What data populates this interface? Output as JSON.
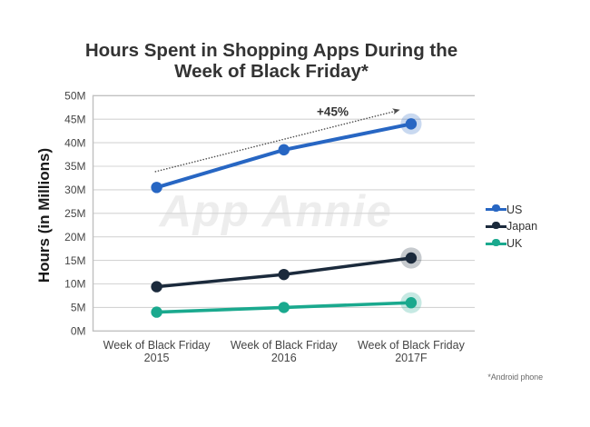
{
  "title": {
    "line1": "Hours Spent in Shopping Apps During the",
    "line2": "Week of Black Friday*"
  },
  "footnote": "*Android phone",
  "colors": {
    "background": "#ffffff",
    "title_text": "#333333",
    "axis_box": "#c0c0c0",
    "gridline": "#d4d4d4",
    "tick_label": "#454545",
    "y_axis_title": "#1a1a1a",
    "legend_label": "#333333",
    "annotation_text": "#333333",
    "annotation_arrow": "#4d4d4d",
    "watermark": "#ededed",
    "footnote_text": "#6b6b6b"
  },
  "chart_data": {
    "type": "line",
    "title": "Hours Spent in Shopping Apps During the Week of Black Friday*",
    "ylabel": "Hours (in Millions)",
    "xlabel": "",
    "watermark": "App Annie",
    "ylim": [
      0,
      50
    ],
    "ytick_step": 5,
    "ytick_labels": [
      "0M",
      "5M",
      "10M",
      "15M",
      "20M",
      "25M",
      "30M",
      "35M",
      "40M",
      "45M",
      "50M"
    ],
    "grid": "horizontal",
    "legend_position": "right",
    "categories": [
      {
        "line1": "Week of Black Friday",
        "line2": "2015"
      },
      {
        "line1": "Week of Black Friday",
        "line2": "2016"
      },
      {
        "line1": "Week of Black Friday",
        "line2": "2017F"
      }
    ],
    "series": [
      {
        "name": "US",
        "color": "#2766c3",
        "values": [
          30.5,
          38.5,
          44
        ],
        "line_width": 4,
        "highlight_last": true
      },
      {
        "name": "Japan",
        "color": "#1b2a3c",
        "values": [
          9.4,
          12,
          15.5
        ],
        "line_width": 3.5,
        "highlight_last": true
      },
      {
        "name": "UK",
        "color": "#1aa98e",
        "values": [
          4,
          5,
          6
        ],
        "line_width": 3.6,
        "highlight_last": true
      }
    ],
    "point_radius": 6.2,
    "halo_radius": 11.6,
    "halo_alpha": 0.25,
    "annotation": {
      "text": "+45%",
      "series": "US"
    }
  }
}
